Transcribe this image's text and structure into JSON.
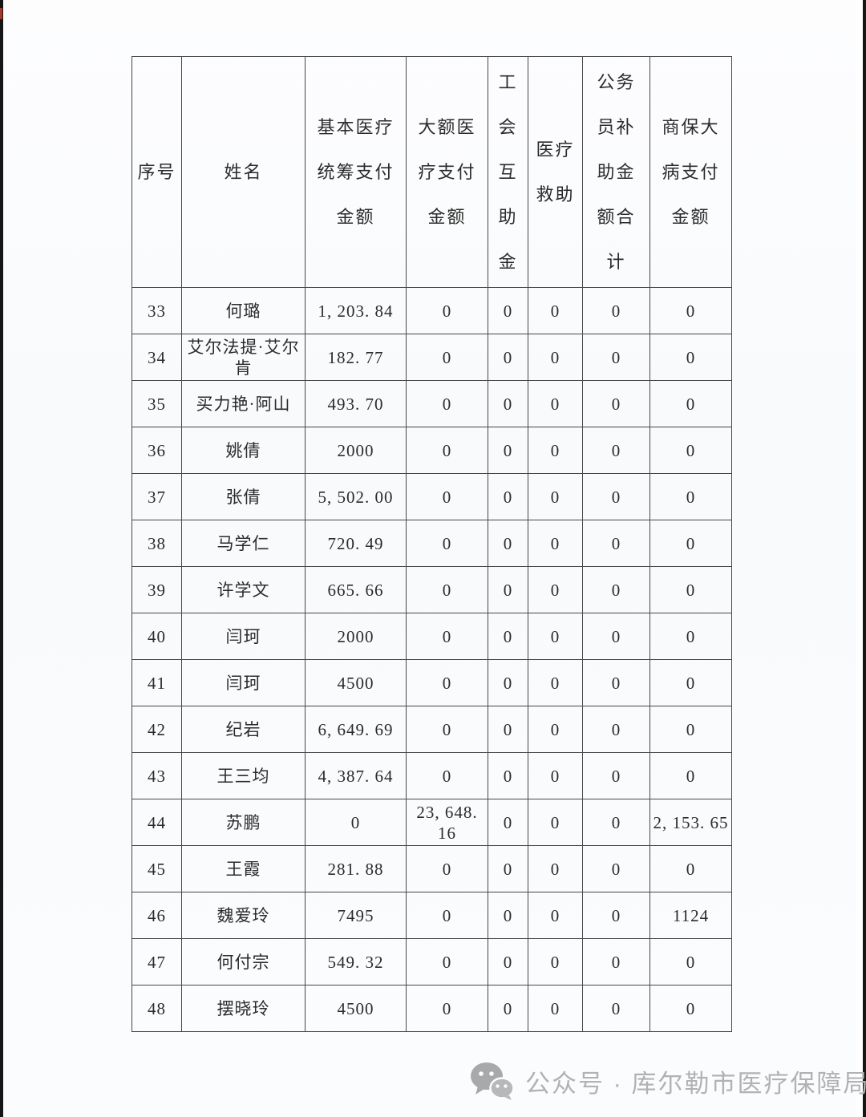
{
  "table": {
    "columns": [
      {
        "key": "index",
        "label": "序号",
        "lines": [
          "序号"
        ]
      },
      {
        "key": "name",
        "label": "姓名",
        "lines": [
          "姓名"
        ]
      },
      {
        "key": "basic",
        "label": "基本医疗统筹支付金额",
        "lines": [
          "基本医疗",
          "统筹支付",
          "金额"
        ]
      },
      {
        "key": "large",
        "label": "大额医疗支付金额",
        "lines": [
          "大额医",
          "疗支付",
          "金额"
        ]
      },
      {
        "key": "union",
        "label": "工会互助金",
        "lines": [
          "工",
          "会",
          "互",
          "助",
          "金"
        ]
      },
      {
        "key": "aid",
        "label": "医疗救助",
        "lines": [
          "医疗",
          "救助"
        ]
      },
      {
        "key": "civil",
        "label": "公务员补助金额合计",
        "lines": [
          "公务",
          "员补",
          "助金",
          "额合",
          "计"
        ]
      },
      {
        "key": "commercial",
        "label": "商保大病支付金额",
        "lines": [
          "商保大",
          "病支付",
          "金额"
        ]
      }
    ],
    "rows": [
      {
        "index": "33",
        "name": "何璐",
        "basic": "1, 203. 84",
        "large": "0",
        "union": "0",
        "aid": "0",
        "civil": "0",
        "commercial": "0"
      },
      {
        "index": "34",
        "name": "艾尔法提·艾尔肯",
        "basic": "182. 77",
        "large": "0",
        "union": "0",
        "aid": "0",
        "civil": "0",
        "commercial": "0"
      },
      {
        "index": "35",
        "name": "买力艳·阿山",
        "basic": "493. 70",
        "large": "0",
        "union": "0",
        "aid": "0",
        "civil": "0",
        "commercial": "0"
      },
      {
        "index": "36",
        "name": "姚倩",
        "basic": "2000",
        "large": "0",
        "union": "0",
        "aid": "0",
        "civil": "0",
        "commercial": "0"
      },
      {
        "index": "37",
        "name": "张倩",
        "basic": "5, 502. 00",
        "large": "0",
        "union": "0",
        "aid": "0",
        "civil": "0",
        "commercial": "0"
      },
      {
        "index": "38",
        "name": "马学仁",
        "basic": "720. 49",
        "large": "0",
        "union": "0",
        "aid": "0",
        "civil": "0",
        "commercial": "0"
      },
      {
        "index": "39",
        "name": "许学文",
        "basic": "665. 66",
        "large": "0",
        "union": "0",
        "aid": "0",
        "civil": "0",
        "commercial": "0"
      },
      {
        "index": "40",
        "name": "闫珂",
        "basic": "2000",
        "large": "0",
        "union": "0",
        "aid": "0",
        "civil": "0",
        "commercial": "0"
      },
      {
        "index": "41",
        "name": "闫珂",
        "basic": "4500",
        "large": "0",
        "union": "0",
        "aid": "0",
        "civil": "0",
        "commercial": "0"
      },
      {
        "index": "42",
        "name": "纪岩",
        "basic": "6, 649. 69",
        "large": "0",
        "union": "0",
        "aid": "0",
        "civil": "0",
        "commercial": "0"
      },
      {
        "index": "43",
        "name": "王三均",
        "basic": "4, 387. 64",
        "large": "0",
        "union": "0",
        "aid": "0",
        "civil": "0",
        "commercial": "0"
      },
      {
        "index": "44",
        "name": "苏鹏",
        "basic": "0",
        "large": "23, 648. 16",
        "union": "0",
        "aid": "0",
        "civil": "0",
        "commercial": "2, 153. 65"
      },
      {
        "index": "45",
        "name": "王霞",
        "basic": "281. 88",
        "large": "0",
        "union": "0",
        "aid": "0",
        "civil": "0",
        "commercial": "0"
      },
      {
        "index": "46",
        "name": "魏爱玲",
        "basic": "7495",
        "large": "0",
        "union": "0",
        "aid": "0",
        "civil": "0",
        "commercial": "1124"
      },
      {
        "index": "47",
        "name": "何付宗",
        "basic": "549. 32",
        "large": "0",
        "union": "0",
        "aid": "0",
        "civil": "0",
        "commercial": "0"
      },
      {
        "index": "48",
        "name": "摆晓玲",
        "basic": "4500",
        "large": "0",
        "union": "0",
        "aid": "0",
        "civil": "0",
        "commercial": "0"
      }
    ]
  },
  "footer": {
    "text": "公众号 · 库尔勒市医疗保障局",
    "icon": "wechat-icon",
    "color": "#b0b2b4"
  },
  "style": {
    "border_color": "#474747",
    "text_color": "#2b2b2b",
    "page_background": "#fafbfd"
  }
}
